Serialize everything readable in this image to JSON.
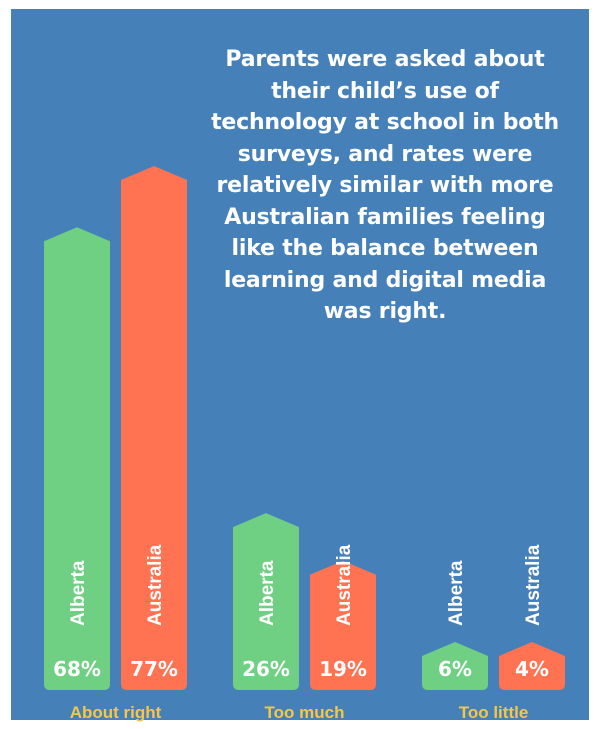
{
  "chart_data": {
    "type": "bar",
    "title": "Parents were asked about their child’s use of technology at school in both surveys, and rates were relatively similar with more Australian families feeling like the balance between learning and digital media was right.",
    "categories": [
      "About right",
      "Too much",
      "Too little"
    ],
    "series": [
      {
        "name": "Alberta",
        "values": [
          68,
          26,
          6
        ],
        "color": "#6fd083"
      },
      {
        "name": "Australia",
        "values": [
          77,
          19,
          4
        ],
        "color": "#ff7252"
      }
    ],
    "value_suffix": "%",
    "ylim": [
      0,
      77
    ],
    "grid": false,
    "legend": "none",
    "category_label_color": "#f5c64a",
    "background_color": "#4680b8"
  }
}
